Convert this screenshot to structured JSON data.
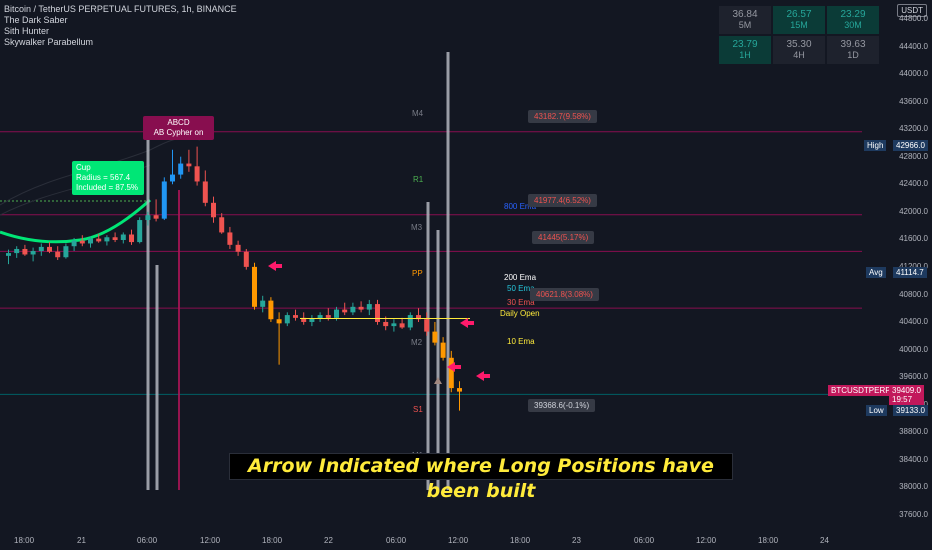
{
  "header": {
    "title": "Bitcoin / TetherUS PERPETUAL FUTURES, 1h, BINANCE",
    "indicators": [
      "The Dark Saber",
      "Sith Hunter",
      "Skywalker Parabellum"
    ]
  },
  "currency": "USDT",
  "timeframe_table": [
    {
      "value": "36.84",
      "tf": "5M",
      "style": "n"
    },
    {
      "value": "26.57",
      "tf": "15M",
      "style": "g"
    },
    {
      "value": "23.29",
      "tf": "30M",
      "style": "g"
    },
    {
      "value": "23.79",
      "tf": "1H",
      "style": "g"
    },
    {
      "value": "35.30",
      "tf": "4H",
      "style": "n"
    },
    {
      "value": "39.63",
      "tf": "1D",
      "style": "n"
    }
  ],
  "price_axis": [
    "44800.0",
    "44400.0",
    "44000.0",
    "43600.0",
    "43200.0",
    "42800.0",
    "42400.0",
    "42000.0",
    "41600.0",
    "41200.0",
    "40800.0",
    "40400.0",
    "40000.0",
    "39600.0",
    "39200.0",
    "38800.0",
    "38400.0",
    "38000.0",
    "37600.0"
  ],
  "time_axis": [
    "18:00",
    "21",
    "06:00",
    "12:00",
    "18:00",
    "22",
    "06:00",
    "12:00",
    "18:00",
    "23",
    "06:00",
    "12:00",
    "18:00",
    "24"
  ],
  "price_tags": {
    "high_label": "High",
    "high_value": "42966.0",
    "avg_label": "Avg",
    "avg_value": "41114.7",
    "symbol": "BTCUSDTPERP",
    "last_price": "39409.0",
    "countdown": "19:57",
    "low_label": "Low",
    "low_value": "39133.0"
  },
  "callouts": {
    "c1": "43182.7(9.58%)",
    "c2": "41977.4(6.52%)",
    "c3": "41445(5.17%)",
    "c4": "40621.8(3.08%)",
    "c5": "39368.6(-0.1%)"
  },
  "pivots": {
    "m4": "M4",
    "r1": "R1",
    "m3": "M3",
    "pp": "PP",
    "m2": "M2",
    "s1": "S1",
    "m1": "M1"
  },
  "ema_labels": {
    "e200": "200 Ema",
    "e50": "50 Ema",
    "e30": "30 Ema",
    "daily": "Daily Open",
    "e10": "10 Ema",
    "e800": "800 Ema"
  },
  "patterns": {
    "abcd_title": "ABCD",
    "abcd_sub": "AB   Cypher   on",
    "cup_title": "Cup",
    "cup_radius": "Radius = 567.4",
    "cup_included": "Included = 87.5%"
  },
  "banner": "Arrow Indicated where Long Positions have been built",
  "colors": {
    "background": "#131722",
    "bull": "#26a69a",
    "bear": "#ef5350",
    "arrow": "#ff1a6b",
    "orange_candle": "#ff9800",
    "blue_candle": "#2196f3"
  },
  "chart_data": {
    "type": "candlestick",
    "interval": "1h",
    "ylim": [
      37400,
      44900
    ],
    "candles": [
      {
        "o": 41380,
        "h": 41470,
        "l": 41260,
        "c": 41420
      },
      {
        "o": 41420,
        "h": 41520,
        "l": 41350,
        "c": 41480
      },
      {
        "o": 41480,
        "h": 41540,
        "l": 41380,
        "c": 41400
      },
      {
        "o": 41400,
        "h": 41500,
        "l": 41300,
        "c": 41450
      },
      {
        "o": 41450,
        "h": 41560,
        "l": 41380,
        "c": 41510
      },
      {
        "o": 41510,
        "h": 41580,
        "l": 41420,
        "c": 41440
      },
      {
        "o": 41440,
        "h": 41520,
        "l": 41320,
        "c": 41360
      },
      {
        "o": 41360,
        "h": 41560,
        "l": 41340,
        "c": 41520
      },
      {
        "o": 41520,
        "h": 41640,
        "l": 41450,
        "c": 41600
      },
      {
        "o": 41600,
        "h": 41680,
        "l": 41520,
        "c": 41560
      },
      {
        "o": 41560,
        "h": 41660,
        "l": 41500,
        "c": 41630
      },
      {
        "o": 41630,
        "h": 41700,
        "l": 41570,
        "c": 41590
      },
      {
        "o": 41590,
        "h": 41680,
        "l": 41530,
        "c": 41650
      },
      {
        "o": 41650,
        "h": 41720,
        "l": 41580,
        "c": 41610
      },
      {
        "o": 41610,
        "h": 41720,
        "l": 41560,
        "c": 41690
      },
      {
        "o": 41690,
        "h": 41760,
        "l": 41540,
        "c": 41580
      },
      {
        "o": 41580,
        "h": 41940,
        "l": 41560,
        "c": 41900
      },
      {
        "o": 41900,
        "h": 42020,
        "l": 41820,
        "c": 41970
      },
      {
        "o": 41970,
        "h": 42200,
        "l": 41880,
        "c": 41920
      },
      {
        "o": 41920,
        "h": 42520,
        "l": 41900,
        "c": 42460
      },
      {
        "o": 42460,
        "h": 42920,
        "l": 42420,
        "c": 42560
      },
      {
        "o": 42560,
        "h": 42820,
        "l": 42500,
        "c": 42720
      },
      {
        "o": 42720,
        "h": 42920,
        "l": 42600,
        "c": 42680
      },
      {
        "o": 42680,
        "h": 42966,
        "l": 42400,
        "c": 42460
      },
      {
        "o": 42460,
        "h": 42620,
        "l": 42100,
        "c": 42150
      },
      {
        "o": 42150,
        "h": 42240,
        "l": 41860,
        "c": 41940
      },
      {
        "o": 41940,
        "h": 42000,
        "l": 41700,
        "c": 41720
      },
      {
        "o": 41720,
        "h": 41800,
        "l": 41480,
        "c": 41540
      },
      {
        "o": 41540,
        "h": 41600,
        "l": 41380,
        "c": 41440
      },
      {
        "o": 41440,
        "h": 41480,
        "l": 41180,
        "c": 41220
      },
      {
        "o": 41220,
        "h": 41280,
        "l": 40600,
        "c": 40640
      },
      {
        "o": 40640,
        "h": 40800,
        "l": 40560,
        "c": 40730
      },
      {
        "o": 40730,
        "h": 40780,
        "l": 40420,
        "c": 40460
      },
      {
        "o": 40460,
        "h": 40560,
        "l": 39800,
        "c": 40400
      },
      {
        "o": 40400,
        "h": 40560,
        "l": 40360,
        "c": 40520
      },
      {
        "o": 40520,
        "h": 40600,
        "l": 40440,
        "c": 40480
      },
      {
        "o": 40480,
        "h": 40560,
        "l": 40380,
        "c": 40420
      },
      {
        "o": 40420,
        "h": 40520,
        "l": 40360,
        "c": 40470
      },
      {
        "o": 40470,
        "h": 40560,
        "l": 40420,
        "c": 40520
      },
      {
        "o": 40520,
        "h": 40620,
        "l": 40440,
        "c": 40480
      },
      {
        "o": 40480,
        "h": 40640,
        "l": 40440,
        "c": 40600
      },
      {
        "o": 40600,
        "h": 40700,
        "l": 40520,
        "c": 40560
      },
      {
        "o": 40560,
        "h": 40700,
        "l": 40520,
        "c": 40640
      },
      {
        "o": 40640,
        "h": 40720,
        "l": 40560,
        "c": 40600
      },
      {
        "o": 40600,
        "h": 40740,
        "l": 40520,
        "c": 40680
      },
      {
        "o": 40680,
        "h": 40740,
        "l": 40380,
        "c": 40420
      },
      {
        "o": 40420,
        "h": 40500,
        "l": 40300,
        "c": 40360
      },
      {
        "o": 40360,
        "h": 40460,
        "l": 40280,
        "c": 40400
      },
      {
        "o": 40400,
        "h": 40480,
        "l": 40320,
        "c": 40340
      },
      {
        "o": 40340,
        "h": 40560,
        "l": 40300,
        "c": 40520
      },
      {
        "o": 40520,
        "h": 40620,
        "l": 40420,
        "c": 40460
      },
      {
        "o": 40460,
        "h": 40560,
        "l": 40220,
        "c": 40280
      },
      {
        "o": 40280,
        "h": 40420,
        "l": 40080,
        "c": 40120
      },
      {
        "o": 40120,
        "h": 40200,
        "l": 39860,
        "c": 39900
      },
      {
        "o": 39900,
        "h": 40000,
        "l": 39400,
        "c": 39460
      },
      {
        "o": 39460,
        "h": 39560,
        "l": 39133,
        "c": 39409
      }
    ]
  }
}
